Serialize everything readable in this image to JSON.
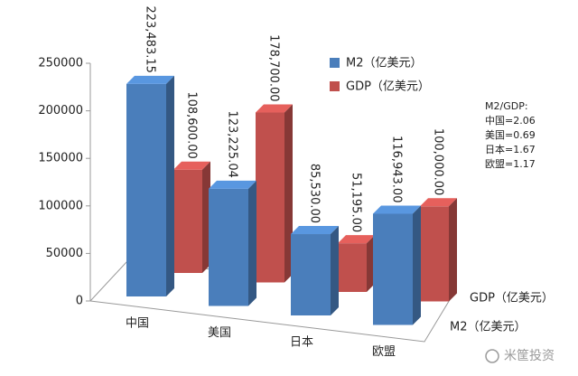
{
  "chart_data": {
    "type": "bar3d",
    "categories": [
      "中国",
      "美国",
      "日本",
      "欧盟"
    ],
    "series": [
      {
        "name": "M2（亿美元）",
        "color": "#4a7ebb",
        "values": [
          223483.15,
          123225.04,
          85530.0,
          116943.0
        ],
        "value_labels": [
          "223,483.15",
          "123,225.04",
          "85,530.00",
          "116,943.00"
        ]
      },
      {
        "name": "GDP（亿美元）",
        "color": "#c0504d",
        "values": [
          108600.0,
          178700.0,
          51195.0,
          100000.0
        ],
        "value_labels": [
          "108,600.00",
          "178,700.00",
          "51,195.00",
          "100,000.00"
        ]
      }
    ],
    "ylim": [
      0,
      250000
    ],
    "yticks": [
      0,
      50000,
      100000,
      150000,
      200000,
      250000
    ],
    "annotations": [
      "M2/GDP:",
      "中国=2.06",
      "美国=0.69",
      "日本=1.67",
      "欧盟=1.17"
    ],
    "watermark": "米筐投资"
  }
}
